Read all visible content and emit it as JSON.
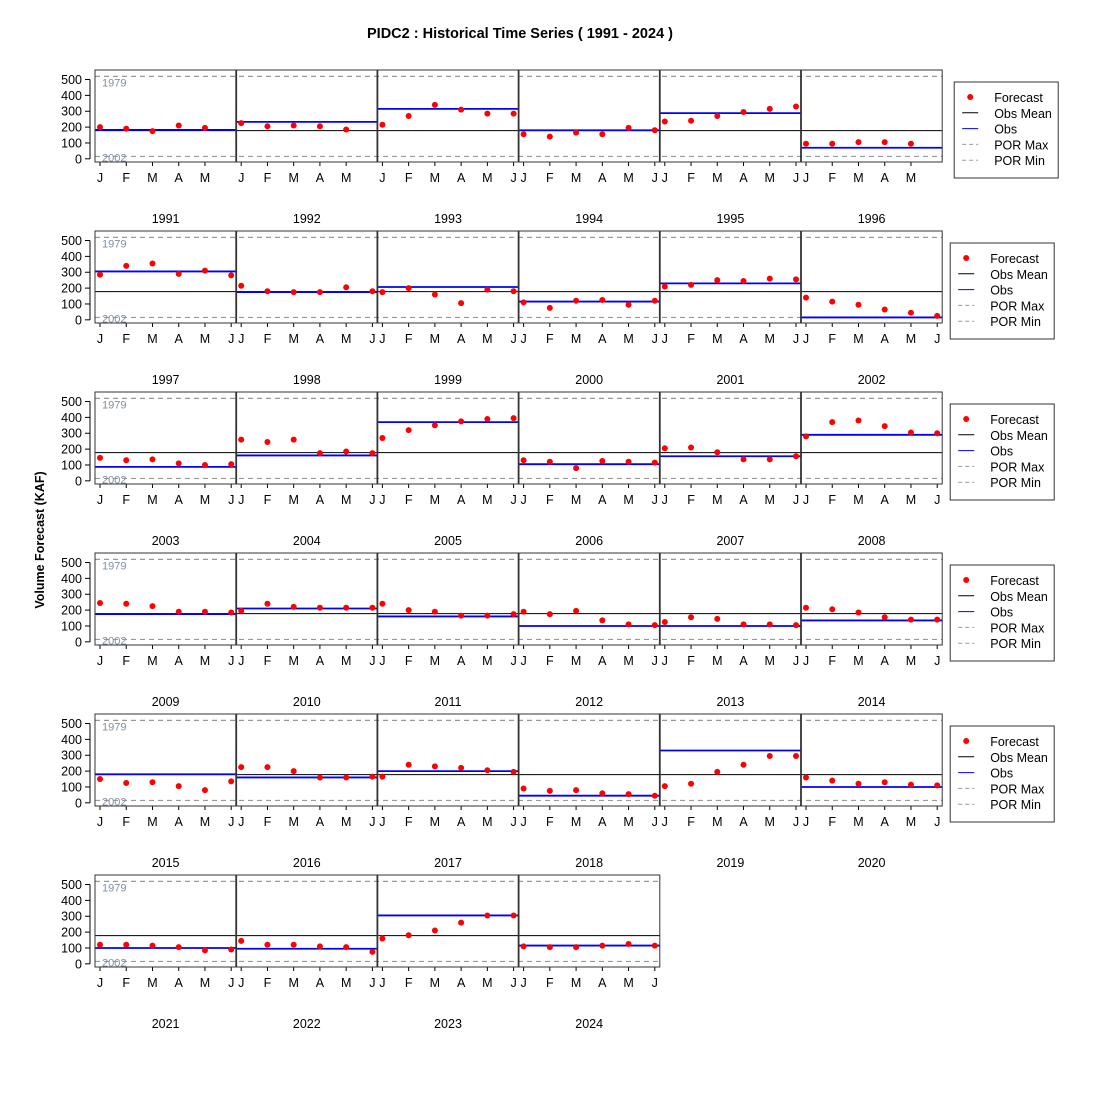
{
  "chart_data": {
    "type": "scatter",
    "title": "PIDC2 : Historical Time Series ( 1991 - 2024 )",
    "ylabel": "Volume Forecast (KAF)",
    "ylim": [
      -20,
      560
    ],
    "y_ticks": [
      0,
      100,
      200,
      300,
      400,
      500
    ],
    "por_max": 520,
    "por_max_label": "1979",
    "por_min": 15,
    "por_min_label": "2002",
    "obs_mean": 178,
    "grid": false,
    "legend": {
      "position": "right",
      "entries": [
        "Forecast",
        "Obs Mean",
        "Obs",
        "POR Max",
        "POR Min"
      ]
    },
    "colors": {
      "forecast": "#ff0000",
      "obs": "#0000ff",
      "obs_mean": "#000000",
      "por": "#999999",
      "por_label": "#7f8fa6"
    },
    "years": [
      {
        "year": "1991",
        "months": [
          "J",
          "F",
          "M",
          "A",
          "M"
        ],
        "forecasts": [
          200,
          190,
          175,
          210,
          195
        ],
        "obs": 182
      },
      {
        "year": "1992",
        "months": [
          "J",
          "F",
          "M",
          "A",
          "M"
        ],
        "forecasts": [
          225,
          205,
          210,
          205,
          185
        ],
        "obs": 233
      },
      {
        "year": "1993",
        "months": [
          "J",
          "F",
          "M",
          "A",
          "M",
          "J"
        ],
        "forecasts": [
          215,
          270,
          340,
          310,
          285,
          285
        ],
        "obs": 315
      },
      {
        "year": "1994",
        "months": [
          "J",
          "F",
          "M",
          "A",
          "M",
          "J"
        ],
        "forecasts": [
          155,
          140,
          165,
          155,
          195,
          180
        ],
        "obs": 180
      },
      {
        "year": "1995",
        "months": [
          "J",
          "F",
          "M",
          "A",
          "M",
          "J"
        ],
        "forecasts": [
          235,
          240,
          270,
          295,
          315,
          330
        ],
        "obs": 288
      },
      {
        "year": "1996",
        "months": [
          "J",
          "F",
          "M",
          "A",
          "M"
        ],
        "forecasts": [
          95,
          95,
          105,
          105,
          95
        ],
        "obs": 70
      },
      {
        "year": "1997",
        "months": [
          "J",
          "F",
          "M",
          "A",
          "M",
          "J"
        ],
        "forecasts": [
          285,
          340,
          355,
          290,
          310,
          280
        ],
        "obs": 305
      },
      {
        "year": "1998",
        "months": [
          "J",
          "F",
          "M",
          "A",
          "M",
          "J"
        ],
        "forecasts": [
          215,
          180,
          175,
          175,
          205,
          180
        ],
        "obs": 175
      },
      {
        "year": "1999",
        "months": [
          "J",
          "F",
          "M",
          "A",
          "M",
          "J"
        ],
        "forecasts": [
          175,
          200,
          160,
          105,
          190,
          180
        ],
        "obs": 207
      },
      {
        "year": "2000",
        "months": [
          "J",
          "F",
          "M",
          "A",
          "M",
          "J"
        ],
        "forecasts": [
          110,
          75,
          120,
          125,
          95,
          120
        ],
        "obs": 115
      },
      {
        "year": "2001",
        "months": [
          "J",
          "F",
          "M",
          "A",
          "M",
          "J"
        ],
        "forecasts": [
          210,
          220,
          250,
          245,
          260,
          255
        ],
        "obs": 230
      },
      {
        "year": "2002",
        "months": [
          "J",
          "F",
          "M",
          "A",
          "M",
          "J"
        ],
        "forecasts": [
          140,
          115,
          95,
          65,
          45,
          25
        ],
        "obs": 15
      },
      {
        "year": "2003",
        "months": [
          "J",
          "F",
          "M",
          "A",
          "M",
          "J"
        ],
        "forecasts": [
          145,
          130,
          135,
          110,
          100,
          105
        ],
        "obs": 88
      },
      {
        "year": "2004",
        "months": [
          "J",
          "F",
          "M",
          "A",
          "M",
          "J"
        ],
        "forecasts": [
          260,
          245,
          260,
          175,
          185,
          175
        ],
        "obs": 160
      },
      {
        "year": "2005",
        "months": [
          "J",
          "F",
          "M",
          "A",
          "M",
          "J"
        ],
        "forecasts": [
          270,
          320,
          350,
          375,
          390,
          395
        ],
        "obs": 370
      },
      {
        "year": "2006",
        "months": [
          "J",
          "F",
          "M",
          "A",
          "M",
          "J"
        ],
        "forecasts": [
          130,
          120,
          80,
          125,
          120,
          115
        ],
        "obs": 105
      },
      {
        "year": "2007",
        "months": [
          "J",
          "F",
          "M",
          "A",
          "M",
          "J"
        ],
        "forecasts": [
          205,
          210,
          180,
          135,
          135,
          155
        ],
        "obs": 155
      },
      {
        "year": "2008",
        "months": [
          "J",
          "F",
          "M",
          "A",
          "M",
          "J"
        ],
        "forecasts": [
          280,
          370,
          380,
          345,
          305,
          300
        ],
        "obs": 290
      },
      {
        "year": "2009",
        "months": [
          "J",
          "F",
          "M",
          "A",
          "M",
          "J"
        ],
        "forecasts": [
          245,
          240,
          225,
          190,
          190,
          185
        ],
        "obs": 175
      },
      {
        "year": "2010",
        "months": [
          "J",
          "F",
          "M",
          "A",
          "M",
          "J"
        ],
        "forecasts": [
          195,
          240,
          220,
          215,
          215,
          215
        ],
        "obs": 210
      },
      {
        "year": "2011",
        "months": [
          "J",
          "F",
          "M",
          "A",
          "M",
          "J"
        ],
        "forecasts": [
          240,
          200,
          190,
          165,
          165,
          175
        ],
        "obs": 160
      },
      {
        "year": "2012",
        "months": [
          "J",
          "F",
          "M",
          "A",
          "M",
          "J"
        ],
        "forecasts": [
          190,
          175,
          195,
          135,
          110,
          105
        ],
        "obs": 100
      },
      {
        "year": "2013",
        "months": [
          "J",
          "F",
          "M",
          "A",
          "M",
          "J"
        ],
        "forecasts": [
          125,
          155,
          145,
          110,
          110,
          105
        ],
        "obs": 100
      },
      {
        "year": "2014",
        "months": [
          "J",
          "F",
          "M",
          "A",
          "M",
          "J"
        ],
        "forecasts": [
          215,
          205,
          185,
          155,
          140,
          140
        ],
        "obs": 135
      },
      {
        "year": "2015",
        "months": [
          "J",
          "F",
          "M",
          "A",
          "M",
          "J"
        ],
        "forecasts": [
          150,
          125,
          130,
          105,
          80,
          135
        ],
        "obs": 180
      },
      {
        "year": "2016",
        "months": [
          "J",
          "F",
          "M",
          "A",
          "M",
          "J"
        ],
        "forecasts": [
          225,
          225,
          200,
          160,
          160,
          165
        ],
        "obs": 160
      },
      {
        "year": "2017",
        "months": [
          "J",
          "F",
          "M",
          "A",
          "M",
          "J"
        ],
        "forecasts": [
          165,
          240,
          230,
          220,
          205,
          195
        ],
        "obs": 200
      },
      {
        "year": "2018",
        "months": [
          "J",
          "F",
          "M",
          "A",
          "M",
          "J"
        ],
        "forecasts": [
          90,
          75,
          80,
          60,
          55,
          45
        ],
        "obs": 45
      },
      {
        "year": "2019",
        "months": [
          "J",
          "F",
          "M",
          "A",
          "M",
          "J"
        ],
        "forecasts": [
          105,
          120,
          195,
          240,
          295,
          295
        ],
        "obs": 330
      },
      {
        "year": "2020",
        "months": [
          "J",
          "F",
          "M",
          "A",
          "M",
          "J"
        ],
        "forecasts": [
          160,
          140,
          120,
          130,
          115,
          110
        ],
        "obs": 100
      },
      {
        "year": "2021",
        "months": [
          "J",
          "F",
          "M",
          "A",
          "M",
          "J"
        ],
        "forecasts": [
          120,
          120,
          115,
          105,
          85,
          90
        ],
        "obs": 100
      },
      {
        "year": "2022",
        "months": [
          "J",
          "F",
          "M",
          "A",
          "M",
          "J"
        ],
        "forecasts": [
          145,
          120,
          120,
          110,
          105,
          75
        ],
        "obs": 95
      },
      {
        "year": "2023",
        "months": [
          "J",
          "F",
          "M",
          "A",
          "M",
          "J"
        ],
        "forecasts": [
          160,
          180,
          210,
          260,
          305,
          305
        ],
        "obs": 305
      },
      {
        "year": "2024",
        "months": [
          "J",
          "F",
          "M",
          "A",
          "M",
          "J"
        ],
        "forecasts": [
          110,
          105,
          105,
          115,
          125,
          115
        ],
        "obs": 115
      }
    ]
  }
}
